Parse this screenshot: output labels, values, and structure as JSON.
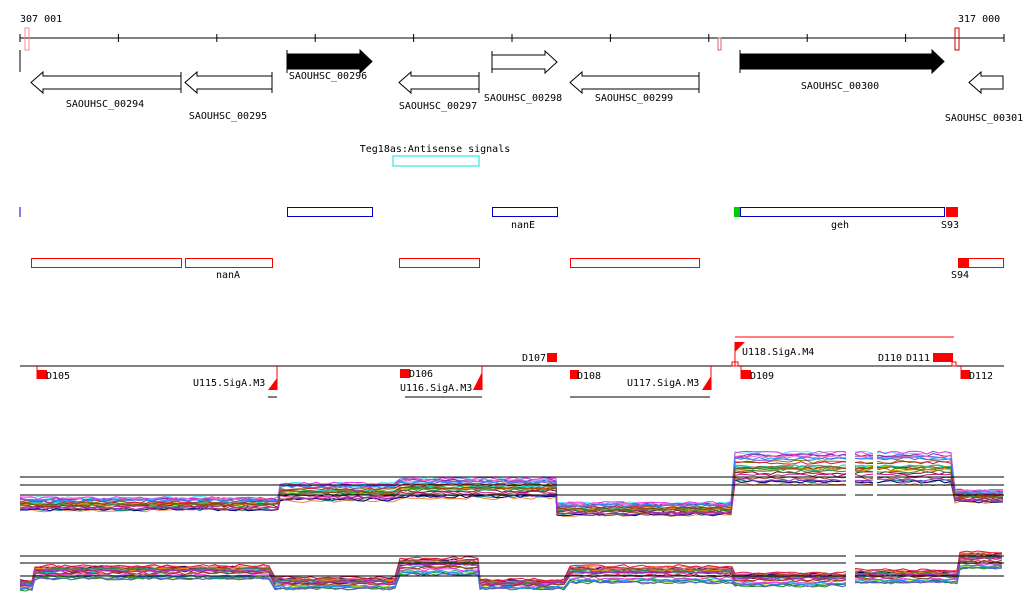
{
  "ruler": {
    "start_label": "307 001",
    "end_label": "317 000"
  },
  "genes": [
    {
      "name": "SAOUHSC_00294",
      "strand": "-"
    },
    {
      "name": "SAOUHSC_00295",
      "strand": "-"
    },
    {
      "name": "SAOUHSC_00296",
      "strand": "+"
    },
    {
      "name": "SAOUHSC_00297",
      "strand": "-"
    },
    {
      "name": "SAOUHSC_00298",
      "strand": "+"
    },
    {
      "name": "SAOUHSC_00299",
      "strand": "-"
    },
    {
      "name": "SAOUHSC_00300",
      "strand": "+"
    },
    {
      "name": "SAOUHSC_00301",
      "strand": "-"
    }
  ],
  "antisense": {
    "label": "Teg18as:Antisense signals"
  },
  "plus_features": {
    "nanE": "nanE",
    "geh": "geh",
    "S93": "S93"
  },
  "minus_features": {
    "nanA": "nanA",
    "S94": "S94"
  },
  "promoters": {
    "D105": "D105",
    "U115": "U115.SigA.M3",
    "D106": "D106",
    "U116": "U116.SigA.M3",
    "D107": "D107",
    "D108": "D108",
    "U117": "U117.SigA.M3",
    "D109": "D109",
    "U118": "U118.SigA.M4",
    "D110": "D110",
    "D111": "D111",
    "D112": "D112"
  },
  "colors": {
    "red": "#ff0000",
    "blue": "#0000cc",
    "cyan": "#00e5e5",
    "green": "#00cc00"
  }
}
